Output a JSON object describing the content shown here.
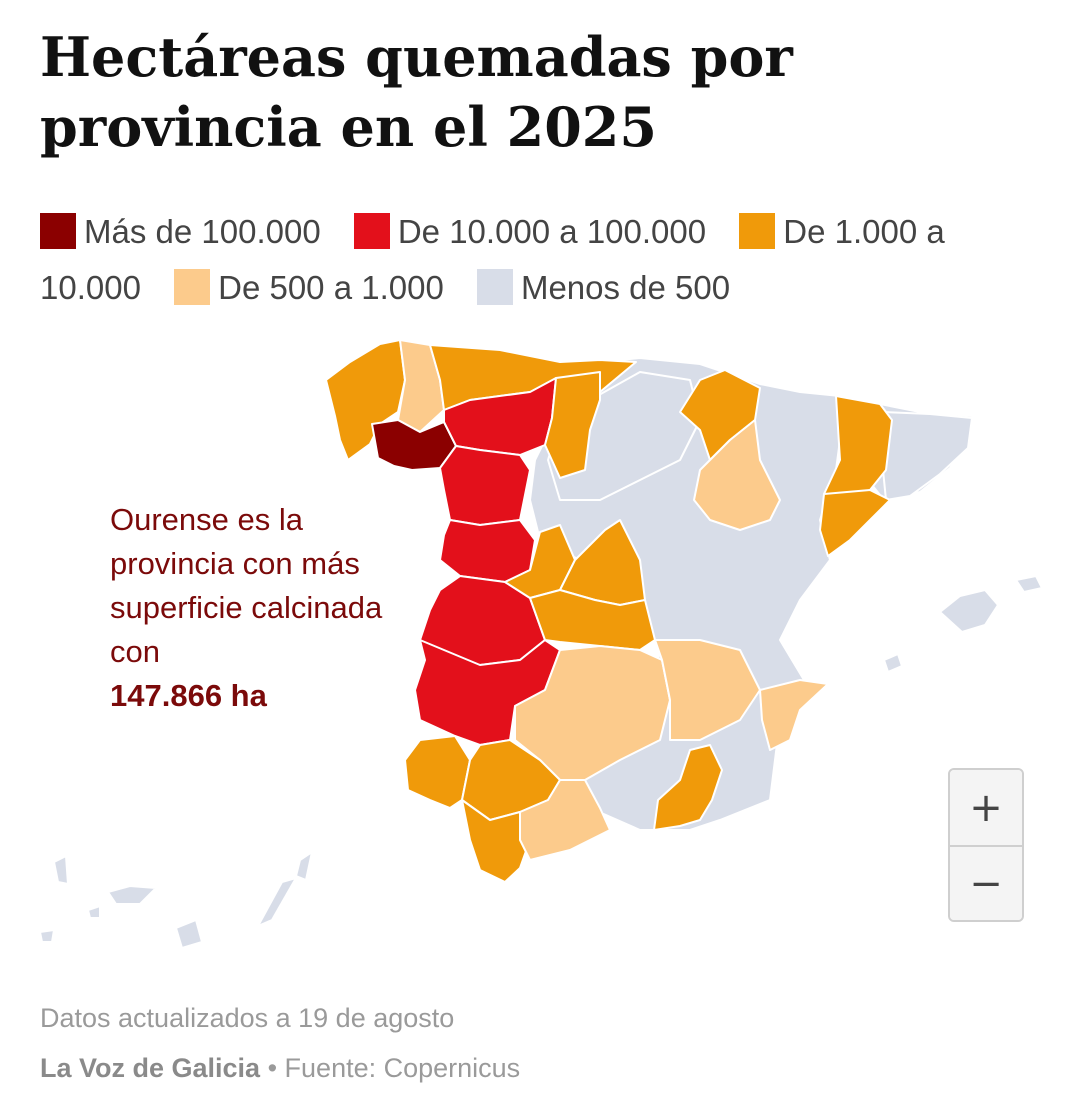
{
  "title": "Hectáreas quemadas por provincia en el 2025",
  "legend": [
    {
      "label": "Más de 100.000",
      "color": "#8b0000"
    },
    {
      "label": "De 10.000 a 100.000",
      "color": "#e3101b"
    },
    {
      "label": "De 1.000 a 10.000",
      "color": "#f09a0a"
    },
    {
      "label": "De 500 a 1.000",
      "color": "#fccb8c"
    },
    {
      "label": "Menos de 500",
      "color": "#d8dde8"
    }
  ],
  "annotation": {
    "text": "Ourense es la provincia con más superficie calcinada con",
    "highlight": "147.866 ha"
  },
  "zoom": {
    "in_label": "+",
    "out_label": "−"
  },
  "footer": {
    "note": "Datos actualizados a 19 de agosto",
    "brand": "La Voz de Galicia",
    "separator": " • ",
    "source": "Fuente: Copernicus"
  }
}
